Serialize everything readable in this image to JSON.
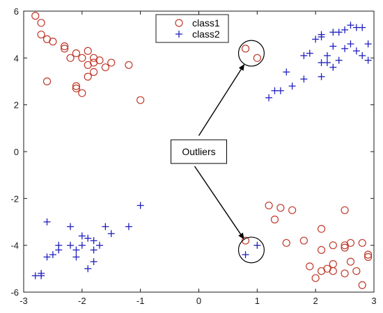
{
  "chart_data": {
    "type": "scatter",
    "xlim": [
      -3,
      3
    ],
    "ylim": [
      -6,
      6
    ],
    "x_ticks": [
      -3,
      -2,
      -1,
      0,
      1,
      2,
      3
    ],
    "y_ticks": [
      -6,
      -4,
      -2,
      0,
      2,
      4,
      6
    ],
    "grid": false,
    "legend_position": "top-center",
    "series": [
      {
        "name": "class1",
        "marker": "circle",
        "color": "#c0392b",
        "points": [
          [
            -2.8,
            5.8
          ],
          [
            -2.7,
            5.5
          ],
          [
            -2.7,
            5.0
          ],
          [
            -2.6,
            4.8
          ],
          [
            -2.5,
            4.7
          ],
          [
            -2.3,
            4.5
          ],
          [
            -2.3,
            4.4
          ],
          [
            -2.2,
            4.0
          ],
          [
            -2.1,
            4.2
          ],
          [
            -2.0,
            4.0
          ],
          [
            -1.9,
            4.3
          ],
          [
            -1.8,
            4.0
          ],
          [
            -1.8,
            3.8
          ],
          [
            -1.7,
            3.9
          ],
          [
            -1.6,
            3.6
          ],
          [
            -1.5,
            3.8
          ],
          [
            -1.9,
            3.7
          ],
          [
            -1.8,
            3.4
          ],
          [
            -1.9,
            3.2
          ],
          [
            -2.6,
            3.0
          ],
          [
            -2.1,
            2.8
          ],
          [
            -2.1,
            2.7
          ],
          [
            -2.0,
            2.5
          ],
          [
            -1.2,
            3.7
          ],
          [
            -1.0,
            2.2
          ],
          [
            0.8,
            4.4
          ],
          [
            1.0,
            4.0
          ],
          [
            1.2,
            -2.3
          ],
          [
            1.4,
            -2.4
          ],
          [
            1.6,
            -2.5
          ],
          [
            1.3,
            -2.9
          ],
          [
            1.5,
            -3.9
          ],
          [
            1.8,
            -3.8
          ],
          [
            2.1,
            -3.3
          ],
          [
            2.1,
            -4.2
          ],
          [
            2.3,
            -4.0
          ],
          [
            2.5,
            -4.0
          ],
          [
            2.5,
            -4.1
          ],
          [
            2.6,
            -3.9
          ],
          [
            2.8,
            -3.9
          ],
          [
            2.5,
            -2.5
          ],
          [
            2.9,
            -4.4
          ],
          [
            2.9,
            -4.5
          ],
          [
            1.9,
            -4.9
          ],
          [
            2.0,
            -5.4
          ],
          [
            2.1,
            -5.1
          ],
          [
            2.2,
            -5.0
          ],
          [
            2.3,
            -5.1
          ],
          [
            2.3,
            -4.8
          ],
          [
            2.5,
            -5.2
          ],
          [
            2.6,
            -4.7
          ],
          [
            2.7,
            -5.1
          ],
          [
            2.8,
            -5.7
          ],
          [
            0.8,
            -3.8
          ]
        ]
      },
      {
        "name": "class2",
        "marker": "plus",
        "color": "#1f1fbf",
        "points": [
          [
            2.6,
            5.4
          ],
          [
            2.7,
            5.3
          ],
          [
            2.8,
            5.3
          ],
          [
            2.5,
            5.2
          ],
          [
            2.4,
            5.1
          ],
          [
            2.3,
            5.1
          ],
          [
            2.1,
            5.0
          ],
          [
            2.0,
            4.8
          ],
          [
            2.1,
            4.9
          ],
          [
            2.9,
            4.6
          ],
          [
            2.6,
            4.6
          ],
          [
            2.5,
            4.4
          ],
          [
            2.3,
            4.5
          ],
          [
            2.7,
            4.3
          ],
          [
            2.2,
            4.1
          ],
          [
            1.9,
            4.2
          ],
          [
            1.8,
            4.1
          ],
          [
            2.8,
            4.1
          ],
          [
            2.9,
            3.9
          ],
          [
            2.4,
            3.9
          ],
          [
            2.2,
            3.8
          ],
          [
            2.1,
            3.8
          ],
          [
            2.3,
            3.6
          ],
          [
            1.5,
            3.4
          ],
          [
            2.1,
            3.2
          ],
          [
            1.8,
            3.1
          ],
          [
            1.6,
            2.8
          ],
          [
            1.4,
            2.6
          ],
          [
            1.3,
            2.6
          ],
          [
            1.2,
            2.3
          ],
          [
            -2.6,
            -3.0
          ],
          [
            -2.0,
            -3.6
          ],
          [
            -1.9,
            -3.7
          ],
          [
            -2.2,
            -3.2
          ],
          [
            -1.6,
            -3.2
          ],
          [
            -1.5,
            -3.5
          ],
          [
            -1.2,
            -3.2
          ],
          [
            -1.0,
            -2.3
          ],
          [
            -2.4,
            -4.0
          ],
          [
            -2.4,
            -4.2
          ],
          [
            -2.2,
            -4.0
          ],
          [
            -2.1,
            -4.2
          ],
          [
            -2.0,
            -4.0
          ],
          [
            -1.8,
            -3.8
          ],
          [
            -1.8,
            -4.2
          ],
          [
            -1.7,
            -4.0
          ],
          [
            -2.6,
            -4.5
          ],
          [
            -2.5,
            -4.4
          ],
          [
            -2.1,
            -4.5
          ],
          [
            -1.8,
            -4.7
          ],
          [
            -1.9,
            -5.0
          ],
          [
            -2.8,
            -5.3
          ],
          [
            -2.7,
            -5.3
          ],
          [
            -2.7,
            -5.2
          ],
          [
            0.8,
            -4.4
          ],
          [
            1.0,
            -4.0
          ]
        ]
      }
    ],
    "annotation": {
      "text": "Outliers",
      "anchor": [
        0.0,
        0.0
      ],
      "circle_centers": [
        [
          0.9,
          4.2
        ],
        [
          0.9,
          -4.2
        ]
      ],
      "circle_radius_units": 0.22
    }
  }
}
